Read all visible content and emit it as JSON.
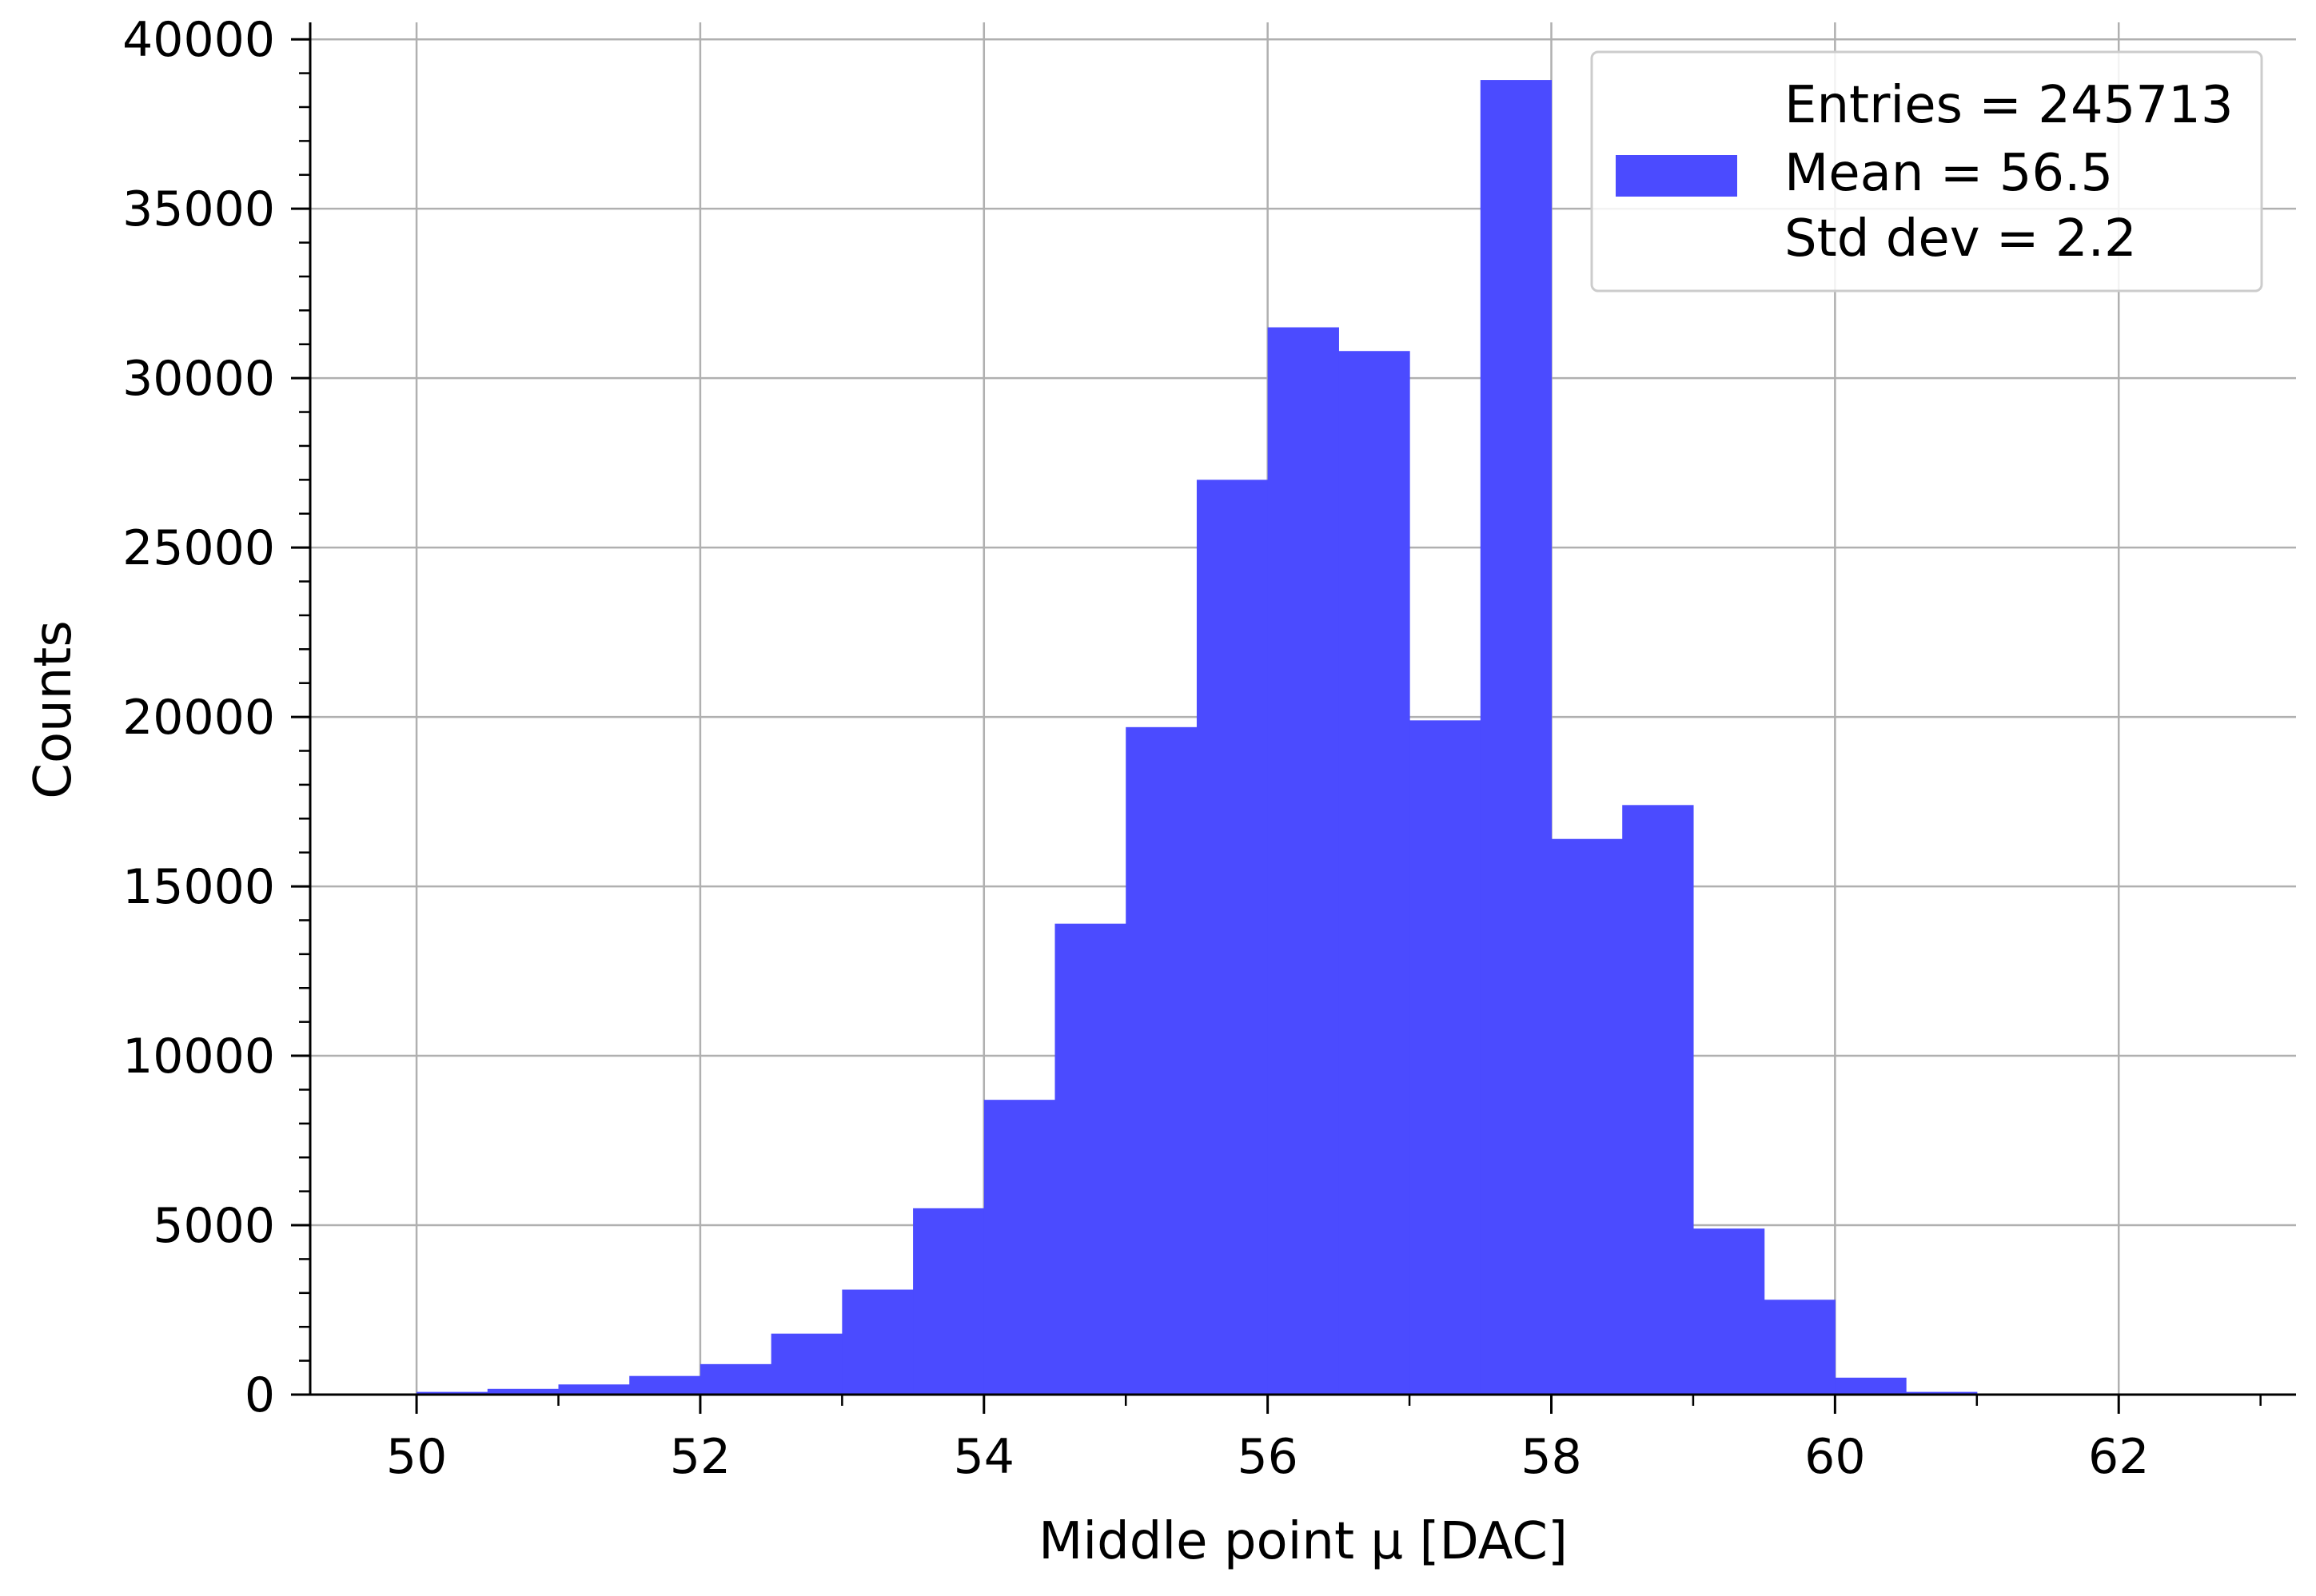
{
  "chart_data": {
    "type": "bar",
    "title": "",
    "xlabel": "Middle point μ [DAC]",
    "ylabel": "Counts",
    "xlim": [
      49.25,
      63.25
    ],
    "ylim": [
      0,
      40500
    ],
    "grid": true,
    "legend_position": "top-right",
    "xticks": [
      50,
      52,
      54,
      56,
      58,
      60,
      62
    ],
    "yticks": [
      0,
      5000,
      10000,
      15000,
      20000,
      25000,
      30000,
      35000,
      40000
    ],
    "bin_width": 0.5,
    "bins": [
      {
        "x0": 50.0,
        "count": 80
      },
      {
        "x0": 50.5,
        "count": 170
      },
      {
        "x0": 51.0,
        "count": 300
      },
      {
        "x0": 51.5,
        "count": 550
      },
      {
        "x0": 52.0,
        "count": 900
      },
      {
        "x0": 52.5,
        "count": 1800
      },
      {
        "x0": 53.0,
        "count": 3100
      },
      {
        "x0": 53.5,
        "count": 5500
      },
      {
        "x0": 54.0,
        "count": 8700
      },
      {
        "x0": 54.5,
        "count": 13900
      },
      {
        "x0": 55.0,
        "count": 19700
      },
      {
        "x0": 55.5,
        "count": 27000
      },
      {
        "x0": 56.0,
        "count": 31500
      },
      {
        "x0": 56.5,
        "count": 30800
      },
      {
        "x0": 57.0,
        "count": 19900
      },
      {
        "x0": 57.5,
        "count": 38800
      },
      {
        "x0": 58.0,
        "count": 16400
      },
      {
        "x0": 58.5,
        "count": 17400
      },
      {
        "x0": 59.0,
        "count": 4900
      },
      {
        "x0": 59.5,
        "count": 2800
      },
      {
        "x0": 60.0,
        "count": 500
      },
      {
        "x0": 60.5,
        "count": 80
      },
      {
        "x0": 61.0,
        "count": 30
      },
      {
        "x0": 61.5,
        "count": 10
      }
    ],
    "series": [
      {
        "color": "#4b4bff"
      }
    ],
    "legend": {
      "lines": [
        "Entries = 245713",
        "Mean = 56.5",
        "Std dev = 2.2"
      ]
    }
  }
}
